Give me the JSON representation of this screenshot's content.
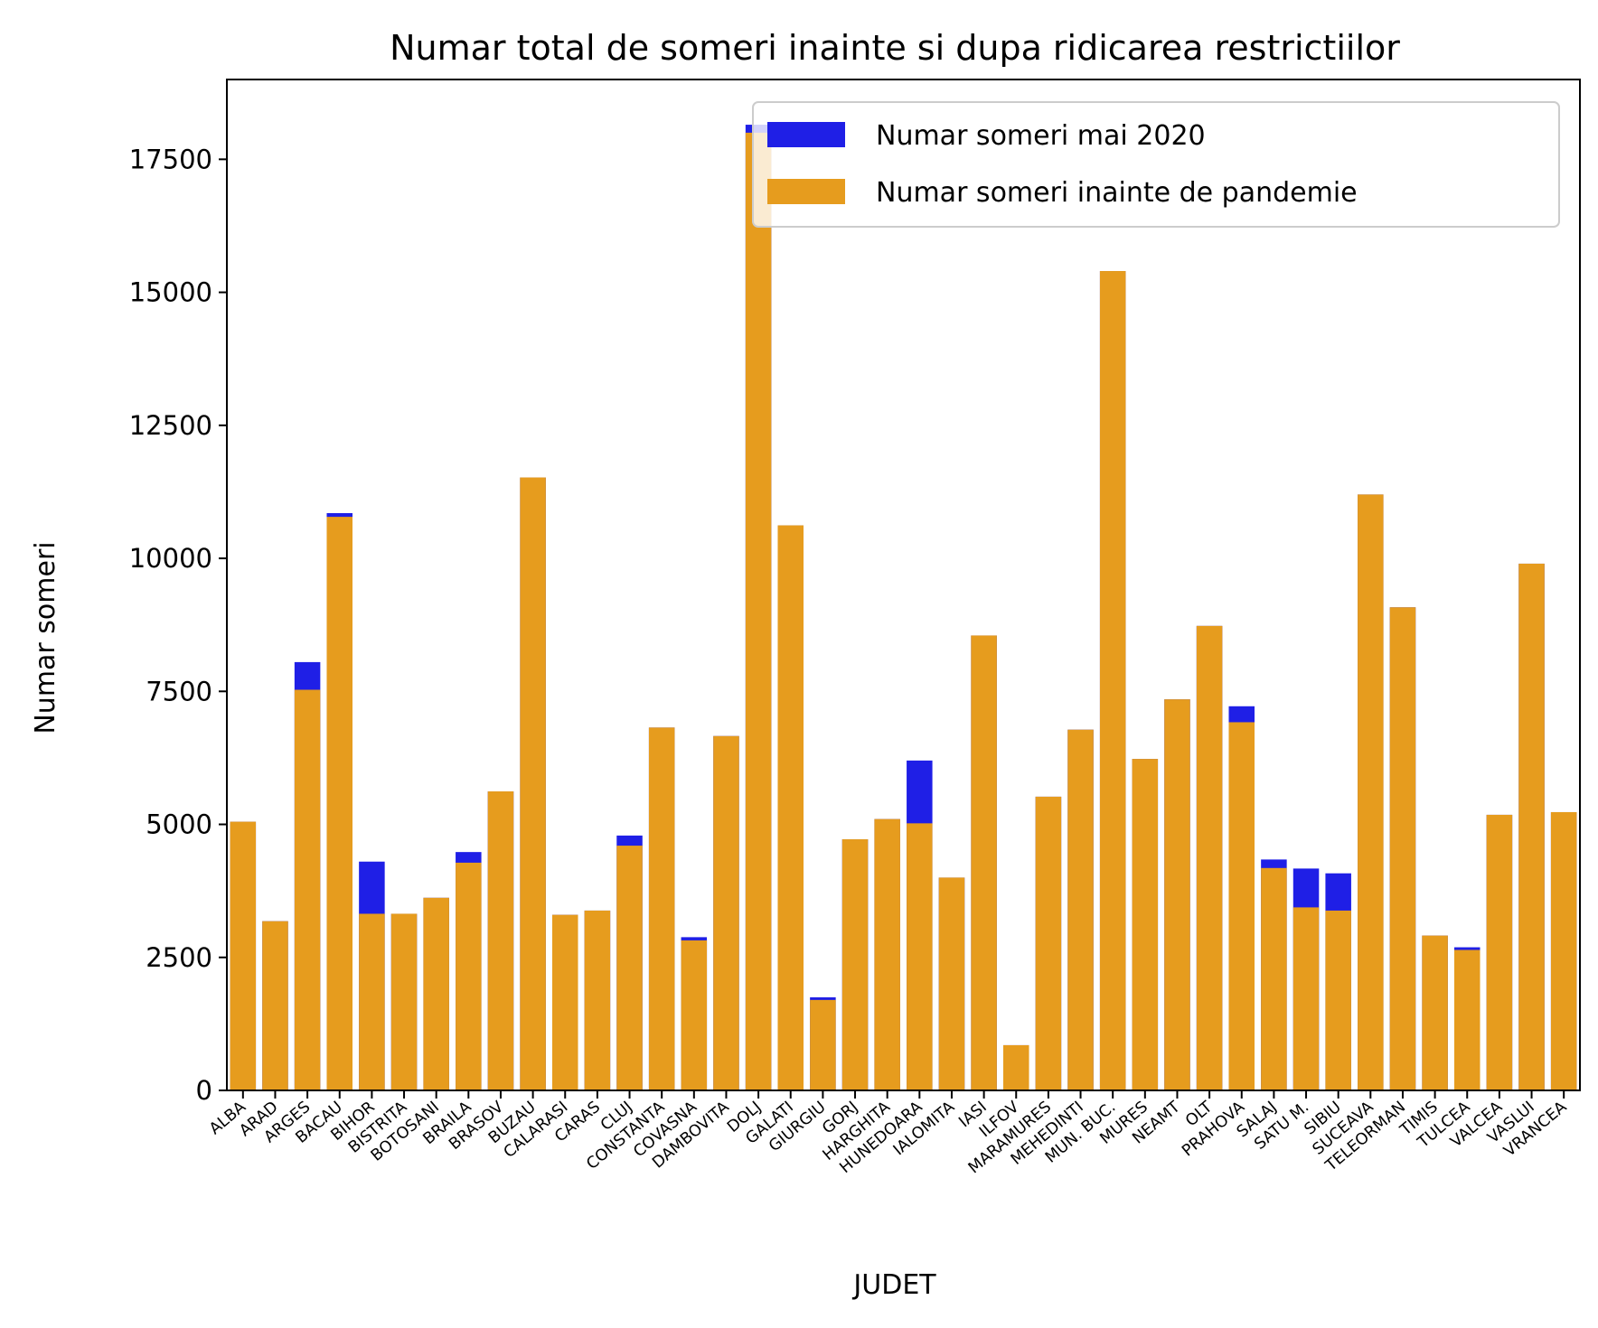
{
  "chart_data": {
    "type": "bar",
    "title": "Numar total de someri inainte si dupa ridicarea restrictiilor",
    "xlabel": "JUDET",
    "ylabel": "Numar someri",
    "ylim": [
      0,
      19000
    ],
    "yticks": [
      0,
      2500,
      5000,
      7500,
      10000,
      12500,
      15000,
      17500
    ],
    "grid": false,
    "legend_position": "top-right",
    "categories": [
      "ALBA",
      "ARAD",
      "ARGES",
      "BACAU",
      "BIHOR",
      "BISTRITA",
      "BOTOSANI",
      "BRAILA",
      "BRASOV",
      "BUZAU",
      "CALARASI",
      "CARAS",
      "CLUJ",
      "CONSTANTA",
      "COVASNA",
      "DAMBOVITA",
      "DOLJ",
      "GALATI",
      "GIURGIU",
      "GORJ",
      "HARGHITA",
      "HUNEDOARA",
      "IALOMITA",
      "IASI",
      "ILFOV",
      "MARAMURES",
      "MEHEDINTI",
      "MUN. BUC.",
      "MURES",
      "NEAMT",
      "OLT",
      "PRAHOVA",
      "SALAJ",
      "SATU M.",
      "SIBIU",
      "SUCEAVA",
      "TELEORMAN",
      "TIMIS",
      "TULCEA",
      "VALCEA",
      "VASLUI",
      "VRANCEA"
    ],
    "series": [
      {
        "name": "Numar someri mai 2020",
        "color": "#1f1fe6",
        "values": [
          5050,
          3180,
          8050,
          10850,
          4300,
          3320,
          3620,
          4480,
          5620,
          11520,
          3300,
          3380,
          4790,
          6820,
          2880,
          6660,
          18150,
          10620,
          1750,
          4720,
          5100,
          6200,
          4000,
          8550,
          850,
          5520,
          6780,
          15400,
          6230,
          7350,
          8730,
          7220,
          4340,
          4170,
          4080,
          11200,
          9080,
          2910,
          2690,
          5180,
          9900,
          5230
        ]
      },
      {
        "name": "Numar someri inainte de pandemie",
        "color": "#e69c1e",
        "values": [
          5050,
          3180,
          7530,
          10780,
          3320,
          3320,
          3620,
          4280,
          5620,
          11520,
          3300,
          3380,
          4600,
          6820,
          2820,
          6660,
          18000,
          10620,
          1700,
          4720,
          5100,
          5020,
          4000,
          8550,
          850,
          5520,
          6780,
          15400,
          6230,
          7350,
          8730,
          6920,
          4180,
          3440,
          3380,
          11200,
          9080,
          2910,
          2640,
          5180,
          9900,
          5230
        ]
      }
    ]
  }
}
